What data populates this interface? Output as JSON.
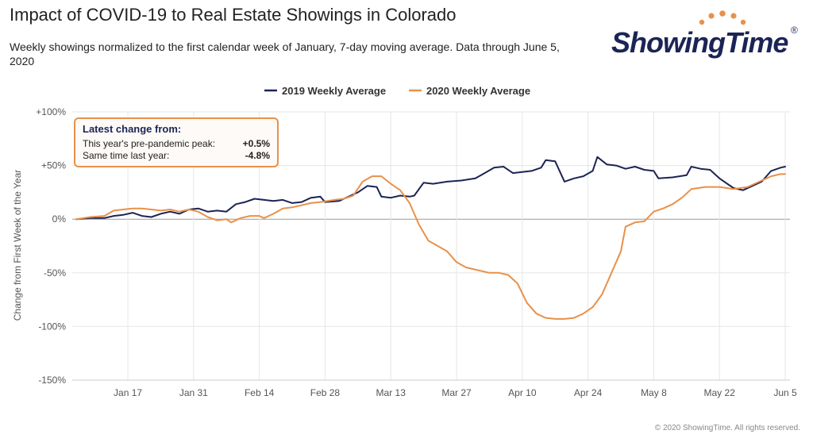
{
  "header": {
    "title": "Impact of COVID-19 to Real Estate Showings in Colorado",
    "subtitle": "Weekly showings normalized to the first calendar week of January, 7-day moving average. Data through June 5, 2020"
  },
  "logo": {
    "text": "ShowingTime",
    "registered": "®",
    "icon": "sun-dots-icon",
    "color": "#1b2455",
    "dot_color": "#e8914a"
  },
  "infobox": {
    "heading": "Latest change from:",
    "rows": [
      {
        "label": "This year's pre-pandemic peak:",
        "value": "+0.5%"
      },
      {
        "label": "Same time last year:",
        "value": "-4.8%"
      }
    ]
  },
  "credit": "© 2020 ShowingTime. All rights reserved.",
  "chart_data": {
    "type": "line",
    "title": "Impact of COVID-19 to Real Estate Showings in Colorado",
    "ylabel": "Change from First Week of the Year",
    "xlabel": "",
    "ylim": [
      -150,
      100
    ],
    "yticks": [
      100,
      50,
      0,
      -50,
      -100,
      -150
    ],
    "ytick_labels": [
      "+100%",
      "+50%",
      "0%",
      "-50%",
      "-100%",
      "-150%"
    ],
    "x_range": [
      "Jan 6",
      "Jun 5"
    ],
    "xticks": [
      "Jan 17",
      "Jan 31",
      "Feb 14",
      "Feb 28",
      "Mar 13",
      "Mar 27",
      "Apr 10",
      "Apr 24",
      "May 8",
      "May 22",
      "Jun 5"
    ],
    "legend_position": "top-center",
    "grid": true,
    "series": [
      {
        "name": "2019 Weekly Average",
        "color": "#1b2455",
        "points": [
          [
            "Jan 6",
            0
          ],
          [
            "Jan 9",
            1
          ],
          [
            "Jan 12",
            1
          ],
          [
            "Jan 14",
            3
          ],
          [
            "Jan 16",
            4
          ],
          [
            "Jan 18",
            6
          ],
          [
            "Jan 20",
            3
          ],
          [
            "Jan 22",
            2
          ],
          [
            "Jan 24",
            5
          ],
          [
            "Jan 26",
            7
          ],
          [
            "Jan 28",
            5
          ],
          [
            "Jan 30",
            9
          ],
          [
            "Feb 1",
            10
          ],
          [
            "Feb 3",
            7
          ],
          [
            "Feb 5",
            8
          ],
          [
            "Feb 7",
            7
          ],
          [
            "Feb 9",
            14
          ],
          [
            "Feb 11",
            16
          ],
          [
            "Feb 13",
            19
          ],
          [
            "Feb 15",
            18
          ],
          [
            "Feb 17",
            17
          ],
          [
            "Feb 19",
            18
          ],
          [
            "Feb 21",
            15
          ],
          [
            "Feb 23",
            16
          ],
          [
            "Feb 25",
            20
          ],
          [
            "Feb 27",
            21
          ],
          [
            "Feb 28",
            16
          ],
          [
            "Mar 2",
            17
          ],
          [
            "Mar 4",
            21
          ],
          [
            "Mar 6",
            25
          ],
          [
            "Mar 8",
            31
          ],
          [
            "Mar 10",
            30
          ],
          [
            "Mar 11",
            21
          ],
          [
            "Mar 13",
            20
          ],
          [
            "Mar 15",
            22
          ],
          [
            "Mar 17",
            21
          ],
          [
            "Mar 18",
            22
          ],
          [
            "Mar 20",
            34
          ],
          [
            "Mar 22",
            33
          ],
          [
            "Mar 25",
            35
          ],
          [
            "Mar 28",
            36
          ],
          [
            "Mar 31",
            38
          ],
          [
            "Apr 2",
            43
          ],
          [
            "Apr 4",
            48
          ],
          [
            "Apr 6",
            49
          ],
          [
            "Apr 8",
            43
          ],
          [
            "Apr 10",
            44
          ],
          [
            "Apr 12",
            45
          ],
          [
            "Apr 14",
            48
          ],
          [
            "Apr 15",
            55
          ],
          [
            "Apr 17",
            54
          ],
          [
            "Apr 19",
            35
          ],
          [
            "Apr 21",
            38
          ],
          [
            "Apr 23",
            40
          ],
          [
            "Apr 25",
            45
          ],
          [
            "Apr 26",
            58
          ],
          [
            "Apr 28",
            51
          ],
          [
            "Apr 30",
            50
          ],
          [
            "May 2",
            47
          ],
          [
            "May 4",
            49
          ],
          [
            "May 6",
            46
          ],
          [
            "May 8",
            45
          ],
          [
            "May 9",
            38
          ],
          [
            "May 12",
            39
          ],
          [
            "May 15",
            41
          ],
          [
            "May 16",
            49
          ],
          [
            "May 18",
            47
          ],
          [
            "May 20",
            46
          ],
          [
            "May 22",
            38
          ],
          [
            "May 25",
            29
          ],
          [
            "May 27",
            27
          ],
          [
            "May 29",
            31
          ],
          [
            "May 31",
            35
          ],
          [
            "Jun 2",
            45
          ],
          [
            "Jun 4",
            48
          ],
          [
            "Jun 5",
            49
          ]
        ]
      },
      {
        "name": "2020 Weekly Average",
        "color": "#e8914a",
        "points": [
          [
            "Jan 6",
            0
          ],
          [
            "Jan 9",
            2
          ],
          [
            "Jan 12",
            3
          ],
          [
            "Jan 14",
            8
          ],
          [
            "Jan 16",
            9
          ],
          [
            "Jan 18",
            10
          ],
          [
            "Jan 20",
            10
          ],
          [
            "Jan 22",
            9
          ],
          [
            "Jan 24",
            8
          ],
          [
            "Jan 26",
            9
          ],
          [
            "Jan 28",
            7
          ],
          [
            "Jan 30",
            9
          ],
          [
            "Feb 1",
            7
          ],
          [
            "Feb 3",
            2
          ],
          [
            "Feb 5",
            -1
          ],
          [
            "Feb 7",
            0
          ],
          [
            "Feb 8",
            -3
          ],
          [
            "Feb 10",
            1
          ],
          [
            "Feb 12",
            3
          ],
          [
            "Feb 14",
            3
          ],
          [
            "Feb 15",
            1
          ],
          [
            "Feb 17",
            5
          ],
          [
            "Feb 19",
            10
          ],
          [
            "Feb 21",
            11
          ],
          [
            "Feb 23",
            13
          ],
          [
            "Feb 25",
            15
          ],
          [
            "Feb 27",
            16
          ],
          [
            "Mar 1",
            18
          ],
          [
            "Mar 3",
            19
          ],
          [
            "Mar 5",
            22
          ],
          [
            "Mar 7",
            35
          ],
          [
            "Mar 9",
            40
          ],
          [
            "Mar 11",
            40
          ],
          [
            "Mar 13",
            33
          ],
          [
            "Mar 15",
            27
          ],
          [
            "Mar 17",
            15
          ],
          [
            "Mar 19",
            -5
          ],
          [
            "Mar 21",
            -20
          ],
          [
            "Mar 23",
            -25
          ],
          [
            "Mar 25",
            -30
          ],
          [
            "Mar 27",
            -40
          ],
          [
            "Mar 29",
            -45
          ],
          [
            "Apr 1",
            -48
          ],
          [
            "Apr 3",
            -50
          ],
          [
            "Apr 5",
            -50
          ],
          [
            "Apr 7",
            -52
          ],
          [
            "Apr 9",
            -60
          ],
          [
            "Apr 11",
            -78
          ],
          [
            "Apr 13",
            -88
          ],
          [
            "Apr 15",
            -92
          ],
          [
            "Apr 17",
            -93
          ],
          [
            "Apr 19",
            -93
          ],
          [
            "Apr 21",
            -92
          ],
          [
            "Apr 23",
            -88
          ],
          [
            "Apr 25",
            -82
          ],
          [
            "Apr 27",
            -70
          ],
          [
            "Apr 29",
            -50
          ],
          [
            "May 1",
            -30
          ],
          [
            "May 2",
            -7
          ],
          [
            "May 4",
            -3
          ],
          [
            "May 6",
            -2
          ],
          [
            "May 8",
            7
          ],
          [
            "May 10",
            10
          ],
          [
            "May 12",
            14
          ],
          [
            "May 14",
            20
          ],
          [
            "May 16",
            28
          ],
          [
            "May 19",
            30
          ],
          [
            "May 22",
            30
          ],
          [
            "May 25",
            28
          ],
          [
            "May 28",
            30
          ],
          [
            "May 31",
            36
          ],
          [
            "Jun 2",
            40
          ],
          [
            "Jun 4",
            42
          ],
          [
            "Jun 5",
            42
          ]
        ]
      }
    ]
  }
}
